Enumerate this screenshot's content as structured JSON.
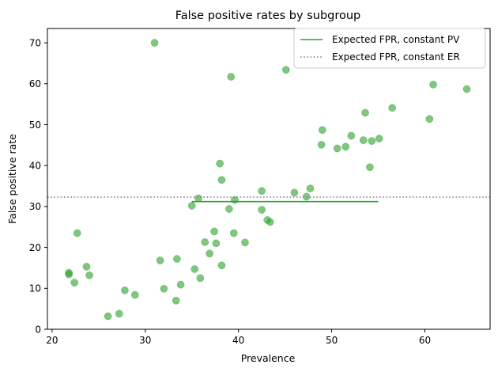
{
  "chart_data": {
    "type": "scatter",
    "title": "False positive rates by subgroup",
    "xlabel": "Prevalence",
    "ylabel": "False positive rate",
    "xlim": [
      19.5,
      67.0
    ],
    "ylim": [
      0,
      73.5
    ],
    "xticks": [
      20,
      30,
      40,
      50,
      60
    ],
    "yticks": [
      0,
      10,
      20,
      30,
      40,
      50,
      60,
      70
    ],
    "grid": false,
    "legend_position": "top-right",
    "colors": {
      "points": "#2ca02c",
      "pv_line": "#2ca02c",
      "er_line": "#808080"
    },
    "points": [
      {
        "x": 21.8,
        "y": 13.8
      },
      {
        "x": 21.8,
        "y": 13.4
      },
      {
        "x": 22.4,
        "y": 11.4
      },
      {
        "x": 22.7,
        "y": 23.5
      },
      {
        "x": 23.7,
        "y": 15.3
      },
      {
        "x": 24.0,
        "y": 13.2
      },
      {
        "x": 26.0,
        "y": 3.2
      },
      {
        "x": 27.2,
        "y": 3.8
      },
      {
        "x": 27.8,
        "y": 9.5
      },
      {
        "x": 28.9,
        "y": 8.4
      },
      {
        "x": 31.0,
        "y": 70.0
      },
      {
        "x": 31.6,
        "y": 16.8
      },
      {
        "x": 32.0,
        "y": 9.9
      },
      {
        "x": 33.3,
        "y": 7.0
      },
      {
        "x": 33.4,
        "y": 17.2
      },
      {
        "x": 33.8,
        "y": 10.9
      },
      {
        "x": 35.0,
        "y": 30.2
      },
      {
        "x": 35.3,
        "y": 14.7
      },
      {
        "x": 35.7,
        "y": 32.0
      },
      {
        "x": 35.9,
        "y": 12.5
      },
      {
        "x": 36.4,
        "y": 21.3
      },
      {
        "x": 36.9,
        "y": 18.5
      },
      {
        "x": 37.4,
        "y": 23.9
      },
      {
        "x": 37.6,
        "y": 21.0
      },
      {
        "x": 38.0,
        "y": 40.5
      },
      {
        "x": 38.2,
        "y": 36.5
      },
      {
        "x": 38.2,
        "y": 15.6
      },
      {
        "x": 39.0,
        "y": 29.4
      },
      {
        "x": 39.2,
        "y": 61.7
      },
      {
        "x": 39.5,
        "y": 23.5
      },
      {
        "x": 39.6,
        "y": 31.6
      },
      {
        "x": 40.7,
        "y": 21.2
      },
      {
        "x": 42.5,
        "y": 33.8
      },
      {
        "x": 42.5,
        "y": 29.2
      },
      {
        "x": 43.1,
        "y": 26.7
      },
      {
        "x": 43.4,
        "y": 26.2
      },
      {
        "x": 45.1,
        "y": 63.4
      },
      {
        "x": 46.0,
        "y": 33.4
      },
      {
        "x": 47.3,
        "y": 32.4
      },
      {
        "x": 47.7,
        "y": 34.4
      },
      {
        "x": 48.9,
        "y": 45.1
      },
      {
        "x": 49.0,
        "y": 48.7
      },
      {
        "x": 50.6,
        "y": 44.2
      },
      {
        "x": 51.5,
        "y": 44.6
      },
      {
        "x": 52.1,
        "y": 47.3
      },
      {
        "x": 53.4,
        "y": 46.2
      },
      {
        "x": 53.6,
        "y": 52.9
      },
      {
        "x": 54.1,
        "y": 39.6
      },
      {
        "x": 54.3,
        "y": 46.0
      },
      {
        "x": 55.1,
        "y": 46.6
      },
      {
        "x": 56.5,
        "y": 54.1
      },
      {
        "x": 60.5,
        "y": 51.4
      },
      {
        "x": 60.9,
        "y": 59.8
      },
      {
        "x": 64.5,
        "y": 58.7
      }
    ],
    "series": [
      {
        "name": "Expected FPR, constant PV",
        "style": "solid",
        "x": [
          35.0,
          55.0
        ],
        "y": [
          31.2,
          31.2
        ]
      },
      {
        "name": "Expected FPR, constant ER",
        "style": "dotted",
        "x": [
          19.5,
          67.0
        ],
        "y": [
          32.3,
          32.3
        ]
      }
    ]
  }
}
